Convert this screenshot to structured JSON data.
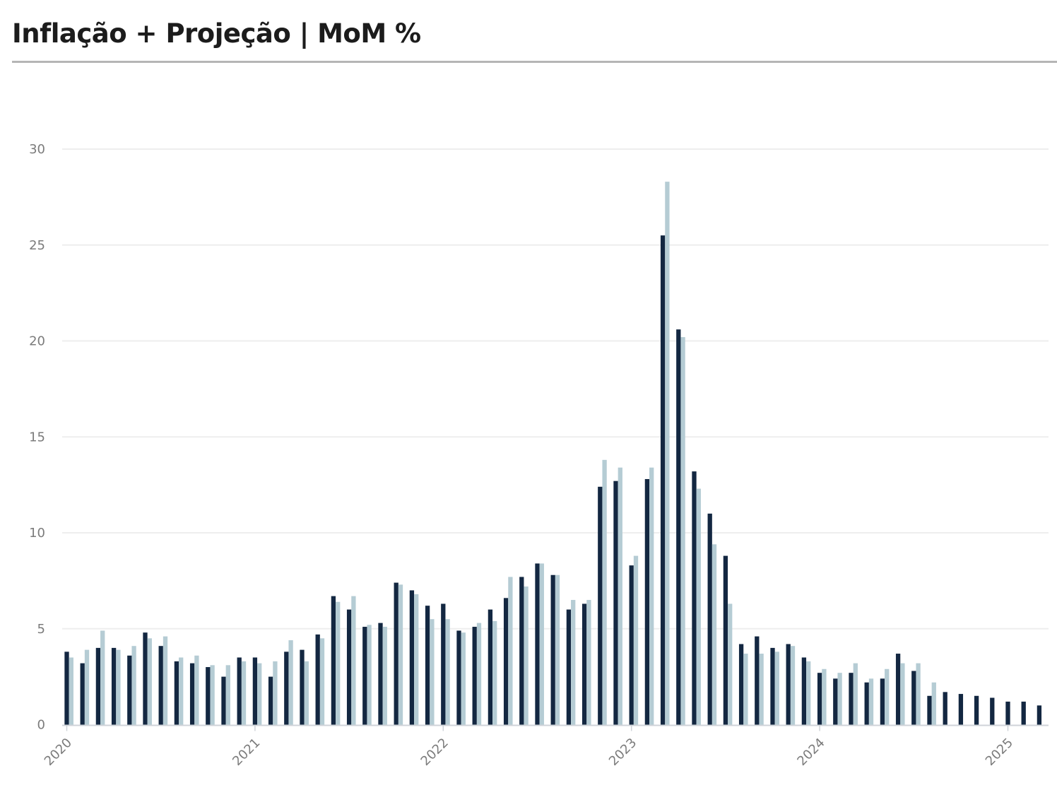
{
  "title": "Inflação + Projeção | MoM %",
  "colors": {
    "actual": "#132741",
    "projection": "#b5ccd4",
    "grid": "#eeeeee",
    "axis": "#cfd3d8"
  },
  "chart_data": {
    "type": "bar",
    "title": "Inflação + Projeção | MoM %",
    "xlabel": "",
    "ylabel": "",
    "ylim": [
      0,
      30
    ],
    "yticks": [
      "0",
      "5",
      "10",
      "15",
      "20",
      "25",
      "30"
    ],
    "xticks": [
      "2020",
      "2021",
      "2022",
      "2023",
      "2024",
      "2025"
    ],
    "grid": true,
    "x_start": "2020-01",
    "series": [
      {
        "values": [
          3.8,
          3.2,
          4.0,
          4.0,
          3.6,
          4.8,
          4.1,
          3.3,
          3.2,
          3.0,
          2.5,
          3.5,
          3.5,
          2.5,
          3.8,
          3.9,
          4.7,
          6.7,
          6.0,
          5.1,
          5.3,
          7.4,
          7.0,
          6.2,
          6.3,
          4.9,
          5.1,
          6.0,
          6.6,
          7.7,
          8.4,
          7.8,
          6.0,
          6.3,
          12.4,
          12.7,
          8.3,
          12.8,
          25.5,
          20.6,
          13.2,
          11.0,
          8.8,
          4.2,
          4.6,
          4.0,
          4.2,
          3.5,
          2.7,
          2.4,
          2.7,
          2.2,
          2.4,
          3.7,
          2.8,
          1.5,
          1.7,
          1.6,
          1.5,
          1.4,
          1.2,
          1.2,
          1.0
        ]
      },
      {
        "values": [
          3.5,
          3.9,
          4.9,
          3.9,
          4.1,
          4.5,
          4.6,
          3.5,
          3.6,
          3.1,
          3.1,
          3.3,
          3.2,
          3.3,
          4.4,
          3.3,
          4.5,
          6.4,
          6.7,
          5.2,
          5.1,
          7.3,
          6.8,
          5.5,
          5.5,
          4.8,
          5.3,
          5.4,
          7.7,
          7.2,
          8.4,
          7.8,
          6.5,
          6.5,
          13.8,
          13.4,
          8.8,
          13.4,
          28.3,
          20.2,
          12.3,
          9.4,
          6.3,
          3.7,
          3.7,
          3.8,
          4.1,
          3.3,
          2.9,
          2.7,
          3.2,
          2.4,
          2.9,
          3.2,
          3.2,
          2.2,
          null,
          null,
          null,
          null,
          null,
          null,
          null
        ]
      }
    ]
  }
}
